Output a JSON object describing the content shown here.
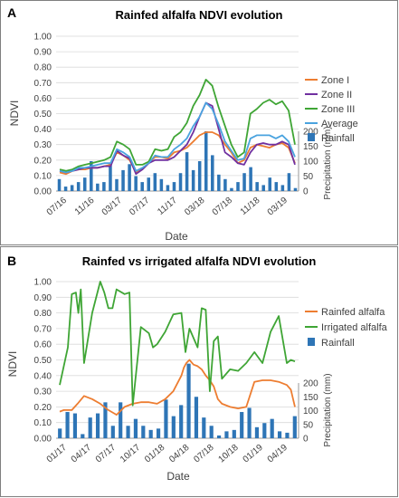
{
  "chart_data": [
    {
      "panel_letter": "A",
      "title": "Rainfed alfalfa NDVI evolution",
      "type": "line",
      "xlabel": "Date",
      "ylabel": "NDVI",
      "y2label": "Precipitation (mm)",
      "ylim": [
        0,
        1
      ],
      "y2_ticks": [
        0,
        50,
        100,
        150,
        200
      ],
      "yticks": [
        "0.00",
        "0.10",
        "0.20",
        "0.30",
        "0.40",
        "0.50",
        "0.60",
        "0.70",
        "0.80",
        "0.90",
        "1.00"
      ],
      "xticks": [
        "07/16",
        "11/16",
        "03/17",
        "07/17",
        "11/17",
        "03/18",
        "07/18",
        "11/18",
        "03/19"
      ],
      "grid": true,
      "legend_position": "right",
      "series": [
        {
          "name": "Zone I",
          "color": "#ed7d31",
          "values": [
            0.12,
            0.11,
            0.13,
            0.14,
            0.14,
            0.15,
            0.15,
            0.16,
            0.17,
            0.25,
            0.23,
            0.2,
            0.12,
            0.14,
            0.18,
            0.22,
            0.22,
            0.21,
            0.25,
            0.26,
            0.28,
            0.32,
            0.36,
            0.38,
            0.38,
            0.36,
            0.3,
            0.25,
            0.18,
            0.2,
            0.28,
            0.3,
            0.29,
            0.28,
            0.3,
            0.31,
            0.28,
            0.18
          ]
        },
        {
          "name": "Zone II",
          "color": "#7030a0",
          "values": [
            0.13,
            0.12,
            0.13,
            0.14,
            0.15,
            0.15,
            0.15,
            0.16,
            0.16,
            0.26,
            0.23,
            0.21,
            0.11,
            0.14,
            0.18,
            0.2,
            0.2,
            0.2,
            0.22,
            0.26,
            0.3,
            0.38,
            0.48,
            0.57,
            0.55,
            0.4,
            0.25,
            0.22,
            0.18,
            0.17,
            0.25,
            0.3,
            0.31,
            0.3,
            0.3,
            0.32,
            0.3,
            0.17
          ]
        },
        {
          "name": "Zone III",
          "color": "#3fa535",
          "values": [
            0.14,
            0.13,
            0.14,
            0.16,
            0.17,
            0.18,
            0.19,
            0.2,
            0.22,
            0.32,
            0.3,
            0.27,
            0.17,
            0.17,
            0.19,
            0.27,
            0.26,
            0.27,
            0.35,
            0.38,
            0.44,
            0.55,
            0.62,
            0.72,
            0.68,
            0.54,
            0.42,
            0.3,
            0.22,
            0.25,
            0.5,
            0.53,
            0.57,
            0.59,
            0.56,
            0.58,
            0.52,
            0.3
          ]
        },
        {
          "name": "Average",
          "color": "#4aa3df",
          "values": [
            0.13,
            0.12,
            0.13,
            0.15,
            0.15,
            0.16,
            0.17,
            0.18,
            0.18,
            0.27,
            0.25,
            0.22,
            0.13,
            0.15,
            0.18,
            0.23,
            0.22,
            0.22,
            0.27,
            0.3,
            0.34,
            0.42,
            0.48,
            0.57,
            0.53,
            0.43,
            0.32,
            0.26,
            0.2,
            0.21,
            0.34,
            0.36,
            0.36,
            0.36,
            0.34,
            0.36,
            0.32,
            0.22
          ]
        }
      ],
      "rainfall": {
        "name": "Rainfall",
        "color": "#2e75b6",
        "values": [
          40,
          15,
          20,
          30,
          45,
          100,
          25,
          30,
          95,
          40,
          70,
          90,
          50,
          30,
          45,
          60,
          40,
          20,
          30,
          60,
          130,
          70,
          100,
          200,
          120,
          55,
          40,
          10,
          30,
          60,
          80,
          30,
          20,
          45,
          30,
          20,
          60,
          10
        ]
      }
    },
    {
      "panel_letter": "B",
      "title": "Rainfed vs irrigated alfalfa NDVI evolution",
      "type": "line",
      "xlabel": "Date",
      "ylabel": "NDVI",
      "y2label": "Precipitation (mm)",
      "ylim": [
        0,
        1
      ],
      "y2_ticks": [
        0,
        50,
        100,
        150,
        200
      ],
      "yticks": [
        "0.00",
        "0.10",
        "0.20",
        "0.30",
        "0.40",
        "0.50",
        "0.60",
        "0.70",
        "0.80",
        "0.90",
        "1.00"
      ],
      "xticks": [
        "01/17",
        "04/17",
        "07/17",
        "10/17",
        "01/18",
        "04/18",
        "07/18",
        "10/18",
        "01/19",
        "04/19"
      ],
      "grid": true,
      "legend_position": "right",
      "series": [
        {
          "name": "Rainfed alfalfa",
          "color": "#ed7d31",
          "x": [
            0,
            0.5,
            1.5,
            2.2,
            3,
            4,
            5,
            6,
            7,
            8,
            9,
            10,
            11,
            12,
            13,
            14,
            15,
            15.3,
            15.6,
            16,
            16.5,
            17,
            17.5,
            18,
            18.5,
            19,
            19.5,
            20,
            21,
            22,
            23,
            24,
            25,
            26,
            27,
            28,
            28.5,
            29
          ],
          "values": [
            0.17,
            0.18,
            0.18,
            0.22,
            0.27,
            0.25,
            0.22,
            0.18,
            0.15,
            0.2,
            0.22,
            0.23,
            0.23,
            0.22,
            0.25,
            0.3,
            0.4,
            0.45,
            0.48,
            0.5,
            0.47,
            0.46,
            0.44,
            0.4,
            0.37,
            0.33,
            0.25,
            0.22,
            0.2,
            0.19,
            0.2,
            0.36,
            0.37,
            0.37,
            0.36,
            0.34,
            0.31,
            0.2
          ]
        },
        {
          "name": "Irrigated alfalfa",
          "color": "#3fa535",
          "x": [
            0,
            1,
            1.5,
            2,
            2.3,
            2.6,
            3,
            4,
            5,
            5.5,
            6,
            6.5,
            7,
            8,
            8.6,
            9,
            10,
            11,
            11.5,
            12,
            13,
            14,
            15,
            15.5,
            16,
            17,
            17.5,
            18,
            18.5,
            19,
            19.5,
            20,
            21,
            22,
            23,
            24,
            25,
            26,
            27,
            28,
            28.5,
            29
          ],
          "values": [
            0.34,
            0.58,
            0.92,
            0.93,
            0.8,
            0.95,
            0.48,
            0.8,
            1.0,
            0.93,
            0.83,
            0.83,
            0.95,
            0.92,
            0.93,
            0.21,
            0.71,
            0.67,
            0.58,
            0.6,
            0.68,
            0.79,
            0.8,
            0.55,
            0.7,
            0.58,
            0.83,
            0.82,
            0.3,
            0.62,
            0.65,
            0.38,
            0.44,
            0.43,
            0.48,
            0.55,
            0.48,
            0.68,
            0.78,
            0.48,
            0.5,
            0.49
          ]
        }
      ],
      "rainfall": {
        "name": "Rainfall",
        "color": "#2e75b6",
        "values": [
          35,
          95,
          90,
          15,
          75,
          90,
          130,
          45,
          130,
          45,
          70,
          45,
          30,
          35,
          140,
          80,
          120,
          270,
          150,
          75,
          45,
          10,
          25,
          30,
          95,
          110,
          40,
          55,
          70,
          25,
          20,
          80
        ]
      }
    }
  ]
}
